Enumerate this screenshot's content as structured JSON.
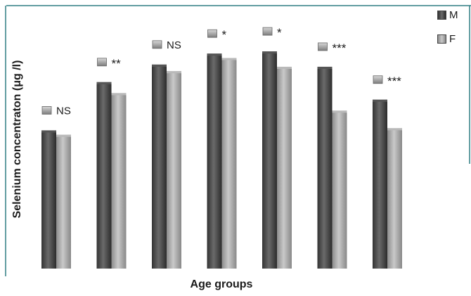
{
  "chart_data": {
    "type": "bar",
    "categories": [
      "",
      "",
      "",
      "",
      "",
      "",
      ""
    ],
    "series": [
      {
        "name": "M",
        "values": [
          63,
          85,
          93,
          98,
          99,
          92,
          77
        ]
      },
      {
        "name": "F",
        "values": [
          61,
          80,
          90,
          96,
          92,
          72,
          64
        ]
      }
    ],
    "significance": [
      "NS",
      "**",
      "NS",
      "*",
      "*",
      "***",
      "***"
    ],
    "xlabel": "Age groups",
    "ylabel": "Selenium concentraton  (μg /l)",
    "ylim": [
      0,
      100
    ],
    "grid": false,
    "legend_position": "top-right",
    "colors": {
      "M": "#4a4a4a",
      "F": "#a8a8a8",
      "marker": "#8f8f8f",
      "frame": "#2e7d82"
    }
  }
}
